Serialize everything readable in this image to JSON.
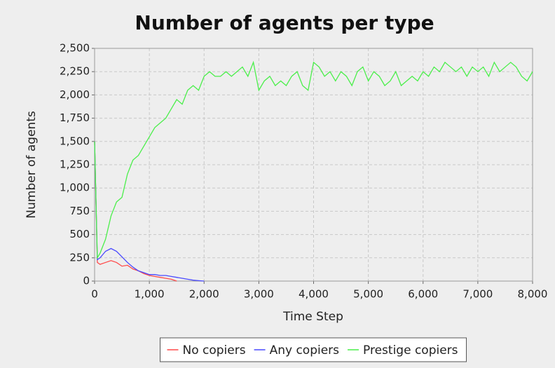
{
  "chart_data": {
    "type": "line",
    "title": "Number of agents per type",
    "x_label": "Time Step",
    "y_label": "Number of agents",
    "xlim": [
      0,
      8000
    ],
    "ylim": [
      0,
      2500
    ],
    "xticks": [
      0,
      {
        "value": 1000,
        "label": "1,000"
      },
      {
        "value": 2000,
        "label": "2,000"
      },
      {
        "value": 3000,
        "label": "3,000"
      },
      {
        "value": 4000,
        "label": "4,000"
      },
      {
        "value": 5000,
        "label": "5,000"
      },
      {
        "value": 6000,
        "label": "6,000"
      },
      {
        "value": 7000,
        "label": "7,000"
      },
      {
        "value": 8000,
        "label": "8,000"
      }
    ],
    "yticks": [
      0,
      250,
      500,
      750,
      {
        "value": 1000,
        "label": "1,000"
      },
      {
        "value": 1250,
        "label": "1,250"
      },
      {
        "value": 1500,
        "label": "1,500"
      },
      {
        "value": 1750,
        "label": "1,750"
      },
      {
        "value": 2000,
        "label": "2,000"
      },
      {
        "value": 2250,
        "label": "2,250"
      },
      {
        "value": 2500,
        "label": "2,500"
      }
    ],
    "grid": true,
    "legend": "bottom",
    "series": [
      {
        "name": "No copiers",
        "color": "#ff4a4a",
        "x": [
          0,
          50,
          100,
          200,
          300,
          400,
          500,
          600,
          700,
          800,
          900,
          1000,
          1100,
          1200,
          1300,
          1400,
          1500
        ],
        "values": [
          1500,
          200,
          180,
          200,
          220,
          200,
          160,
          170,
          130,
          110,
          80,
          60,
          50,
          40,
          30,
          20,
          0
        ]
      },
      {
        "name": "Any copiers",
        "color": "#4a4aff",
        "x": [
          0,
          50,
          100,
          200,
          300,
          400,
          500,
          600,
          700,
          800,
          900,
          1000,
          1100,
          1200,
          1300,
          1400,
          1500,
          1600,
          1700,
          1800,
          1900,
          2000
        ],
        "values": [
          1500,
          230,
          250,
          320,
          350,
          320,
          260,
          200,
          150,
          110,
          90,
          70,
          70,
          60,
          60,
          50,
          40,
          30,
          20,
          10,
          5,
          0
        ]
      },
      {
        "name": "Prestige copiers",
        "color": "#4aef4a",
        "x": [
          0,
          50,
          100,
          200,
          300,
          400,
          500,
          600,
          700,
          800,
          900,
          1000,
          1100,
          1200,
          1300,
          1400,
          1500,
          1600,
          1700,
          1800,
          1900,
          2000,
          2100,
          2200,
          2300,
          2400,
          2500,
          2600,
          2700,
          2800,
          2900,
          3000,
          3100,
          3200,
          3300,
          3400,
          3500,
          3600,
          3700,
          3800,
          3900,
          4000,
          4100,
          4200,
          4300,
          4400,
          4500,
          4600,
          4700,
          4800,
          4900,
          5000,
          5100,
          5200,
          5300,
          5400,
          5500,
          5600,
          5700,
          5800,
          5900,
          6000,
          6100,
          6200,
          6300,
          6400,
          6500,
          6600,
          6700,
          6800,
          6900,
          7000,
          7100,
          7200,
          7300,
          7400,
          7500,
          7600,
          7700,
          7800,
          7900,
          8000
        ],
        "values": [
          1500,
          250,
          300,
          450,
          700,
          850,
          900,
          1150,
          1300,
          1350,
          1450,
          1550,
          1650,
          1700,
          1750,
          1850,
          1950,
          1900,
          2050,
          2100,
          2050,
          2200,
          2250,
          2200,
          2200,
          2250,
          2200,
          2250,
          2300,
          2200,
          2350,
          2050,
          2150,
          2200,
          2100,
          2150,
          2100,
          2200,
          2250,
          2100,
          2050,
          2350,
          2300,
          2200,
          2250,
          2150,
          2250,
          2200,
          2100,
          2250,
          2300,
          2150,
          2250,
          2200,
          2100,
          2150,
          2250,
          2100,
          2150,
          2200,
          2150,
          2250,
          2200,
          2300,
          2250,
          2350,
          2300,
          2250,
          2300,
          2200,
          2300,
          2250,
          2300,
          2200,
          2350,
          2250,
          2300,
          2350,
          2300,
          2200,
          2150,
          2250
        ]
      }
    ]
  }
}
